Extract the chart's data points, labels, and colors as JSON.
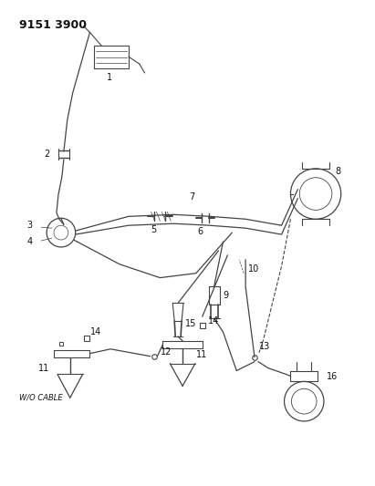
{
  "title": "9151 3900",
  "background_color": "#ffffff",
  "line_color": "#444444",
  "text_color": "#111111",
  "fig_width": 4.11,
  "fig_height": 5.33,
  "dpi": 100
}
